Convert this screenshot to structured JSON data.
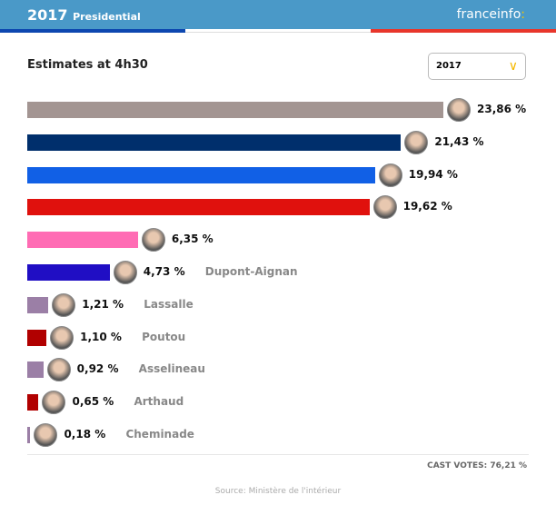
{
  "header": {
    "year": "2017",
    "title": "Presidential",
    "logo": "franceinfo",
    "logo_colon": ":",
    "tricolor": [
      "#0d47b0",
      "#ffffff",
      "#e8362b"
    ],
    "bg": "#4a99c8"
  },
  "subtitle": "Estimates at 4h30",
  "year_select": {
    "value": "2017"
  },
  "chart_data": {
    "type": "bar",
    "orientation": "horizontal",
    "unit": "%",
    "xlim": [
      0,
      23.86
    ],
    "candidates": [
      {
        "name": "",
        "value": 23.86,
        "label": "23,86 %",
        "color": "#a39592"
      },
      {
        "name": "",
        "value": 21.43,
        "label": "21,43 %",
        "color": "#002f6c"
      },
      {
        "name": "",
        "value": 19.94,
        "label": "19,94 %",
        "color": "#1160e6"
      },
      {
        "name": "",
        "value": 19.62,
        "label": "19,62 %",
        "color": "#e0110d"
      },
      {
        "name": "",
        "value": 6.35,
        "label": "6,35 %",
        "color": "#ff6cb4"
      },
      {
        "name": "Dupont-Aignan",
        "value": 4.73,
        "label": "4,73 %",
        "color": "#200ec4"
      },
      {
        "name": "Lassalle",
        "value": 1.21,
        "label": "1,21 %",
        "color": "#9b7fa6"
      },
      {
        "name": "Poutou",
        "value": 1.1,
        "label": "1,10 %",
        "color": "#b10000"
      },
      {
        "name": "Asselineau",
        "value": 0.92,
        "label": "0,92 %",
        "color": "#9b7fa6"
      },
      {
        "name": "Arthaud",
        "value": 0.65,
        "label": "0,65 %",
        "color": "#b10000"
      },
      {
        "name": "Cheminade",
        "value": 0.18,
        "label": "0,18 %",
        "color": "#9b7fa6"
      }
    ]
  },
  "cast_votes": "CAST VOTES: 76,21 %",
  "source": "Source: Ministère de l'intérieur"
}
